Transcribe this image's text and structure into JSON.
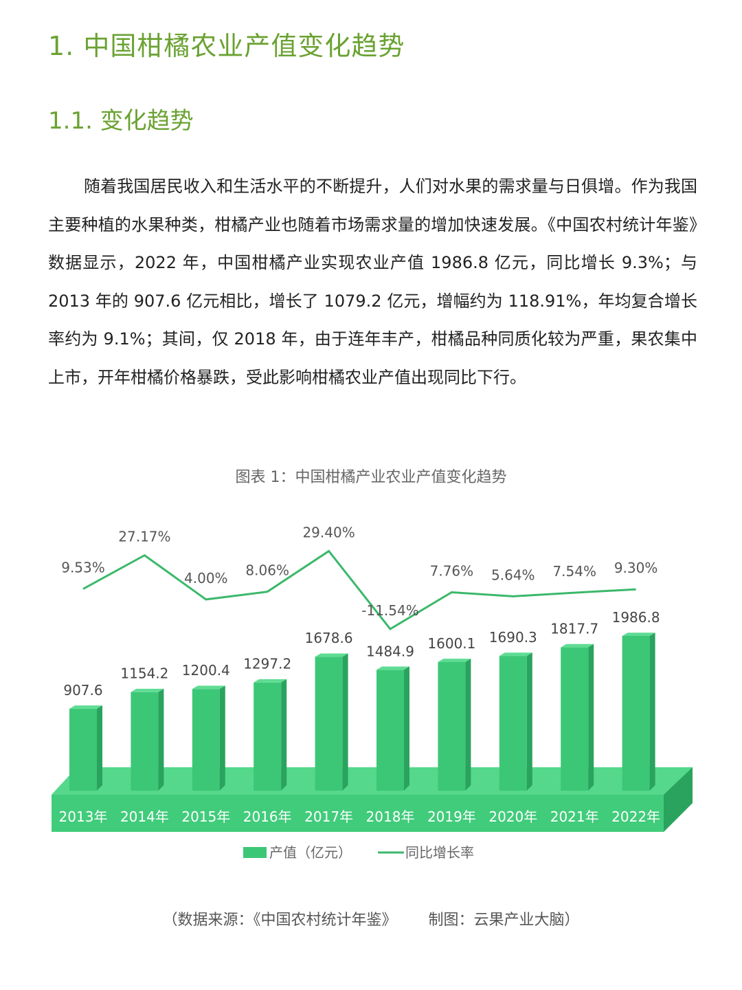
{
  "heading": "1. 中国柑橘农业产值变化趋势",
  "subheading": "1.1. 变化趋势",
  "paragraph": "随着我国居民收入和生活水平的不断提升，人们对水果的需求量与日俱增。作为我国主要种植的水果种类，柑橘产业也随着市场需求量的增加快速发展。《中国农村统计年鉴》数据显示，2022 年，中国柑橘产业实现农业产值 1986.8 亿元，同比增长 9.3%；与 2013 年的 907.6 亿元相比，增长了 1079.2 亿元，增幅约为 118.91%，年均复合增长率约为 9.1%；其间，仅 2018 年，由于连年丰产，柑橘品种同质化较为严重，果农集中上市，开年柑橘价格暴跌，受此影响柑橘农业产值出现同比下行。",
  "chart_caption": "图表 1：中国柑橘产业农业产值变化趋势",
  "colors": {
    "heading": "#6aa232",
    "bar": "#3cc777",
    "bar_dark": "#2aa35e",
    "base": "#41cc7b",
    "line": "#3bb86a"
  },
  "chart_data": {
    "type": "bar",
    "title": "",
    "categories": [
      "2013年",
      "2014年",
      "2015年",
      "2016年",
      "2017年",
      "2018年",
      "2019年",
      "2020年",
      "2021年",
      "2022年"
    ],
    "series": [
      {
        "name": "产值（亿元）",
        "type": "bar",
        "values": [
          907.6,
          1154.2,
          1200.4,
          1297.2,
          1678.6,
          1484.9,
          1600.1,
          1690.3,
          1817.7,
          1986.8
        ],
        "labels": [
          "907.6",
          "1154.2",
          "1200.4",
          "1297.2",
          "1678.6",
          "1484.9",
          "1600.1",
          "1690.3",
          "1817.7",
          "1986.8"
        ]
      },
      {
        "name": "同比增长率",
        "type": "line",
        "values": [
          9.53,
          27.17,
          4.0,
          8.06,
          29.4,
          -11.54,
          7.76,
          5.64,
          7.54,
          9.3
        ],
        "labels": [
          "9.53%",
          "27.17%",
          "4.00%",
          "8.06%",
          "29.40%",
          "-11.54%",
          "7.76%",
          "5.64%",
          "7.54%",
          "9.30%"
        ]
      }
    ],
    "legend_position": "bottom",
    "grid": false
  },
  "source": {
    "data_source": "（数据来源：《中国农村统计年鉴》",
    "credit": "制图：云果产业大脑）"
  }
}
